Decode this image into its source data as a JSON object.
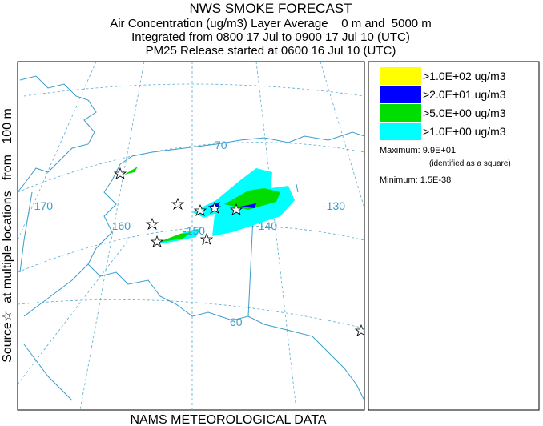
{
  "header": {
    "title": "NWS SMOKE FORECAST",
    "lines": [
      "Air Concentration (ug/m3) Layer Average    0 m and  5000 m",
      "Integrated from 0800 17 Jul to 0900 17 Jul 10 (UTC)",
      "PM25 Release started at 0600 16 Jul 10 (UTC)"
    ]
  },
  "side_label": "Source☆  at multiple locations   from   100 m",
  "footer": "NAMS METEOROLOGICAL DATA",
  "map": {
    "labels": [
      "-170",
      "-160",
      "-150",
      "-140",
      "-130",
      "70",
      "60"
    ]
  },
  "legend": {
    "items": [
      {
        "label": ">1.0E+02 ug/m3",
        "color": "#ffff00"
      },
      {
        "label": ">2.0E+01 ug/m3",
        "color": "#0000ff"
      },
      {
        "label": ">5.0E+00 ug/m3",
        "color": "#00dd00"
      },
      {
        "label": ">1.0E+00 ug/m3",
        "color": "#00ffff"
      }
    ],
    "maximum": "Maximum: 9.9E+01",
    "maximum_note": "(identified as a square)",
    "minimum": "Minimum: 1.5E-38"
  }
}
